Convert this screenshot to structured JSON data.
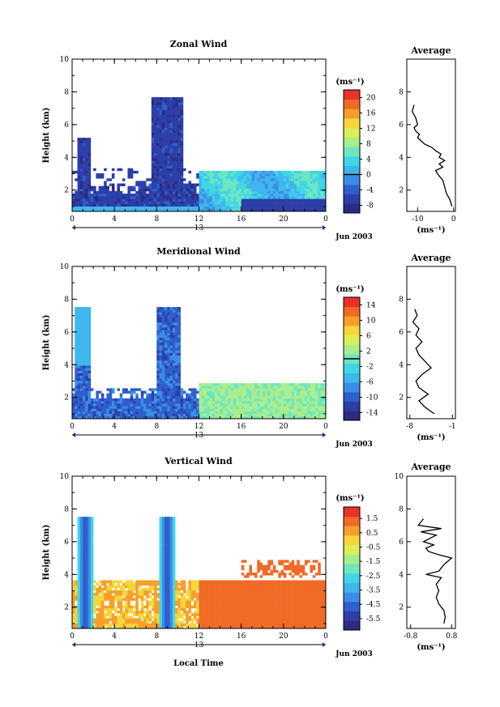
{
  "figure": {
    "time_axis_label": "Local Time",
    "date_label": "Jun 2003",
    "day_label": "13",
    "height_label": "Height (km)",
    "x_ticks": [
      "0",
      "4",
      "8",
      "12",
      "16",
      "20",
      "0"
    ],
    "y_ticks": [
      "2",
      "4",
      "6",
      "8",
      "10"
    ],
    "profile_title": "Average",
    "profile_unit": "(ms⁻¹)",
    "colorbar_unit": "(ms⁻¹)"
  },
  "colors": {
    "ramp": [
      "#2b2b80",
      "#2c3fa8",
      "#2f5fcc",
      "#3a8ee6",
      "#3fb6ee",
      "#40d6e6",
      "#6ee6c0",
      "#a9ee8c",
      "#dcee5a",
      "#f4d63a",
      "#f6a02a",
      "#f06a26",
      "#e8322a"
    ],
    "border": "#000000",
    "frame": "#ffffff"
  },
  "chart_data": [
    {
      "type": "heatmap",
      "title": "Zonal Wind",
      "xlabel": "",
      "ylabel": "Height (km)",
      "x_range": [
        0,
        24
      ],
      "y_range": [
        0.7,
        10
      ],
      "colorbar": {
        "ticks": [
          "20",
          "16",
          "12",
          "8",
          "4",
          "0",
          "-4",
          "-8"
        ],
        "range": [
          -10,
          22
        ],
        "zero_line": 0
      },
      "profile": {
        "title": "Average",
        "xlabel": "(ms⁻¹)",
        "x_ticks": [
          "-10",
          "0"
        ],
        "x_range": [
          -13,
          0.5
        ],
        "y_ticks": [
          "2",
          "4",
          "6",
          "8"
        ],
        "heights": [
          1.0,
          1.4,
          1.8,
          2.2,
          2.6,
          3.0,
          3.2,
          3.4,
          3.6,
          3.8,
          4.0,
          4.2,
          4.4,
          4.6,
          4.8,
          5.0,
          5.2,
          5.4,
          5.6,
          5.8,
          6.0,
          6.4,
          6.8,
          7.2
        ],
        "values": [
          -0.5,
          -1.0,
          -2.0,
          -2.5,
          -3.0,
          -4.5,
          -5.0,
          -3.0,
          -4.0,
          -2.5,
          -4.0,
          -3.5,
          -5.0,
          -6.0,
          -8.0,
          -9.0,
          -10.0,
          -9.5,
          -10.5,
          -11.0,
          -10.0,
          -10.5,
          -11.5,
          -11.0
        ]
      }
    },
    {
      "type": "heatmap",
      "title": "Meridional Wind",
      "xlabel": "",
      "ylabel": "Height (km)",
      "x_range": [
        0,
        24
      ],
      "y_range": [
        0.7,
        10
      ],
      "colorbar": {
        "ticks": [
          "14",
          "10",
          "6",
          "2",
          "-2",
          "-6",
          "-10",
          "-14"
        ],
        "range": [
          -16,
          16
        ],
        "zero_line": 0
      },
      "profile": {
        "title": "Average",
        "xlabel": "(ms⁻¹)",
        "x_ticks": [
          "-8",
          "-1"
        ],
        "x_range": [
          -8.5,
          -0.5
        ],
        "y_ticks": [
          "2",
          "4",
          "6",
          "8"
        ],
        "heights": [
          1.0,
          1.4,
          1.8,
          2.2,
          2.6,
          3.0,
          3.4,
          3.8,
          4.2,
          4.6,
          5.0,
          5.4,
          5.8,
          6.2,
          6.6,
          7.0,
          7.4
        ],
        "values": [
          -4.0,
          -5.5,
          -6.5,
          -5.0,
          -6.5,
          -7.0,
          -6.0,
          -4.5,
          -5.5,
          -6.5,
          -7.0,
          -6.0,
          -7.0,
          -6.5,
          -7.5,
          -6.8,
          -7.2
        ]
      }
    },
    {
      "type": "heatmap",
      "title": "Vertical Wind",
      "xlabel": "Local Time",
      "ylabel": "Height (km)",
      "x_range": [
        0,
        24
      ],
      "y_range": [
        0.7,
        10
      ],
      "colorbar": {
        "ticks": [
          "1.5",
          "0.5",
          "-0.5",
          "-1.5",
          "-2.5",
          "-3.5",
          "-4.5",
          "-5.5"
        ],
        "range": [
          -6.3,
          2.3
        ]
      },
      "profile": {
        "title": "Average",
        "xlabel": "(ms⁻¹)",
        "x_ticks": [
          "-0.8",
          "0.8"
        ],
        "x_range": [
          -0.95,
          0.95
        ],
        "y_ticks": [
          "2",
          "4",
          "6",
          "8",
          "10"
        ],
        "heights": [
          1.0,
          1.4,
          1.8,
          2.2,
          2.6,
          3.0,
          3.4,
          3.8,
          4.0,
          4.2,
          4.6,
          5.0,
          5.2,
          5.4,
          5.6,
          5.8,
          6.0,
          6.4,
          6.6,
          6.8,
          7.0,
          7.4
        ],
        "values": [
          0.5,
          0.55,
          0.5,
          0.3,
          0.2,
          0.3,
          0.2,
          0.4,
          -0.2,
          0.3,
          0.5,
          0.8,
          0.3,
          -0.1,
          -0.2,
          0.1,
          -0.3,
          0.2,
          -0.4,
          0.4,
          -0.5,
          -0.3
        ]
      }
    }
  ]
}
